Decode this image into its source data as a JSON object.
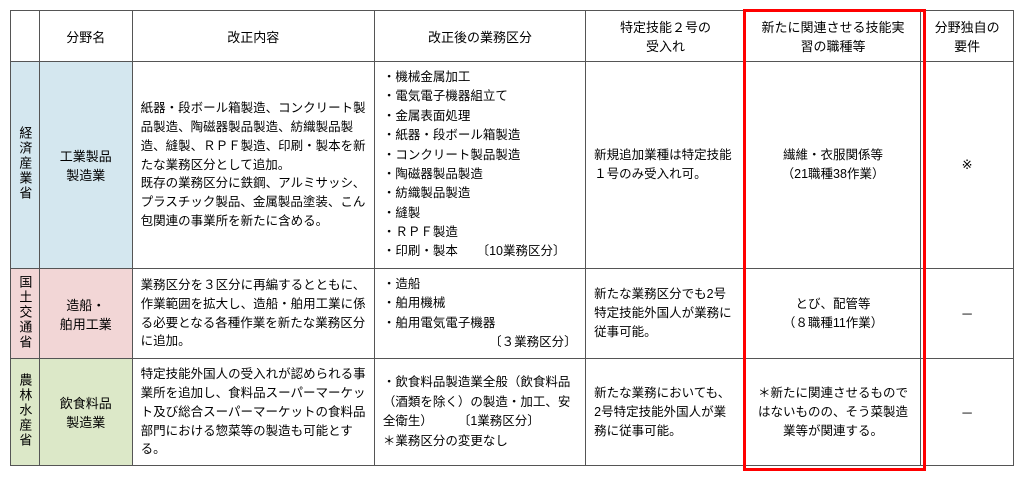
{
  "headers": {
    "ministry": "",
    "field": "分野名",
    "content": "改正内容",
    "category": "改正後の業務区分",
    "accept": "特定技能２号の\n受入れ",
    "related": "新たに関連させる技能実\n習の職種等",
    "req": "分野独自の\n要件"
  },
  "rows": [
    {
      "ministry": "経済産業省",
      "field": "工業製品\n製造業",
      "content": "紙器・段ボール箱製造、コンクリート製品製造、陶磁器製品製造、紡織製品製造、縫製、ＲＰＦ製造、印刷・製本を新たな業務区分として追加。\n既存の業務区分に鉄鋼、アルミサッシ、プラスチック製品、金属製品塗装、こん包関連の事業所を新たに含める。",
      "category": "・機械金属加工\n・電気電子機器組立て\n・金属表面処理\n・紙器・段ボール箱製造\n・コンクリート製品製造\n・陶磁器製品製造\n・紡織製品製造\n・縫製\n・ＲＰＦ製造\n・印刷・製本　　〔10業務区分〕",
      "accept": "新規追加業種は特定技能１号のみ受入れ可。",
      "related": "繊維・衣服関係等\n（21職種38作業）",
      "req": "※"
    },
    {
      "ministry": "国土交通省",
      "field": "造船・\n舶用工業",
      "content": "業務区分を３区分に再編するとともに、作業範囲を拡大し、造船・舶用工業に係る必要となる各種作業を新たな業務区分に追加。",
      "category": "・造船\n・舶用機械\n・舶用電気電子機器\n　　　　　　　　　〔３業務区分〕",
      "accept": "新たな業務区分でも2号特定技能外国人が業務に従事可能。",
      "related": "とび、配管等\n（８職種11作業）",
      "req": "－"
    },
    {
      "ministry": "農林水産省",
      "field": "飲食料品\n製造業",
      "content": "特定技能外国人の受入れが認められる事業所を追加し、食料品スーパーマーケット及び総合スーパーマーケットの食料品部門における惣菜等の製造も可能とする。",
      "category": "・飲食料品製造業全般（飲食料品（酒類を除く）の製造・加工、安全衛生）　　　〔1業務区分〕\n＊業務区分の変更なし",
      "accept": "新たな業務においても、2号特定技能外国人が業務に従事可能。",
      "related": "＊新たに関連させるものではないものの、そう菜製造業等が関連する。",
      "req": "－"
    }
  ],
  "style": {
    "row_bg": [
      "#d4e7ef",
      "#f2d6d6",
      "#dce8c8"
    ],
    "highlight_border": "#ff0000"
  }
}
